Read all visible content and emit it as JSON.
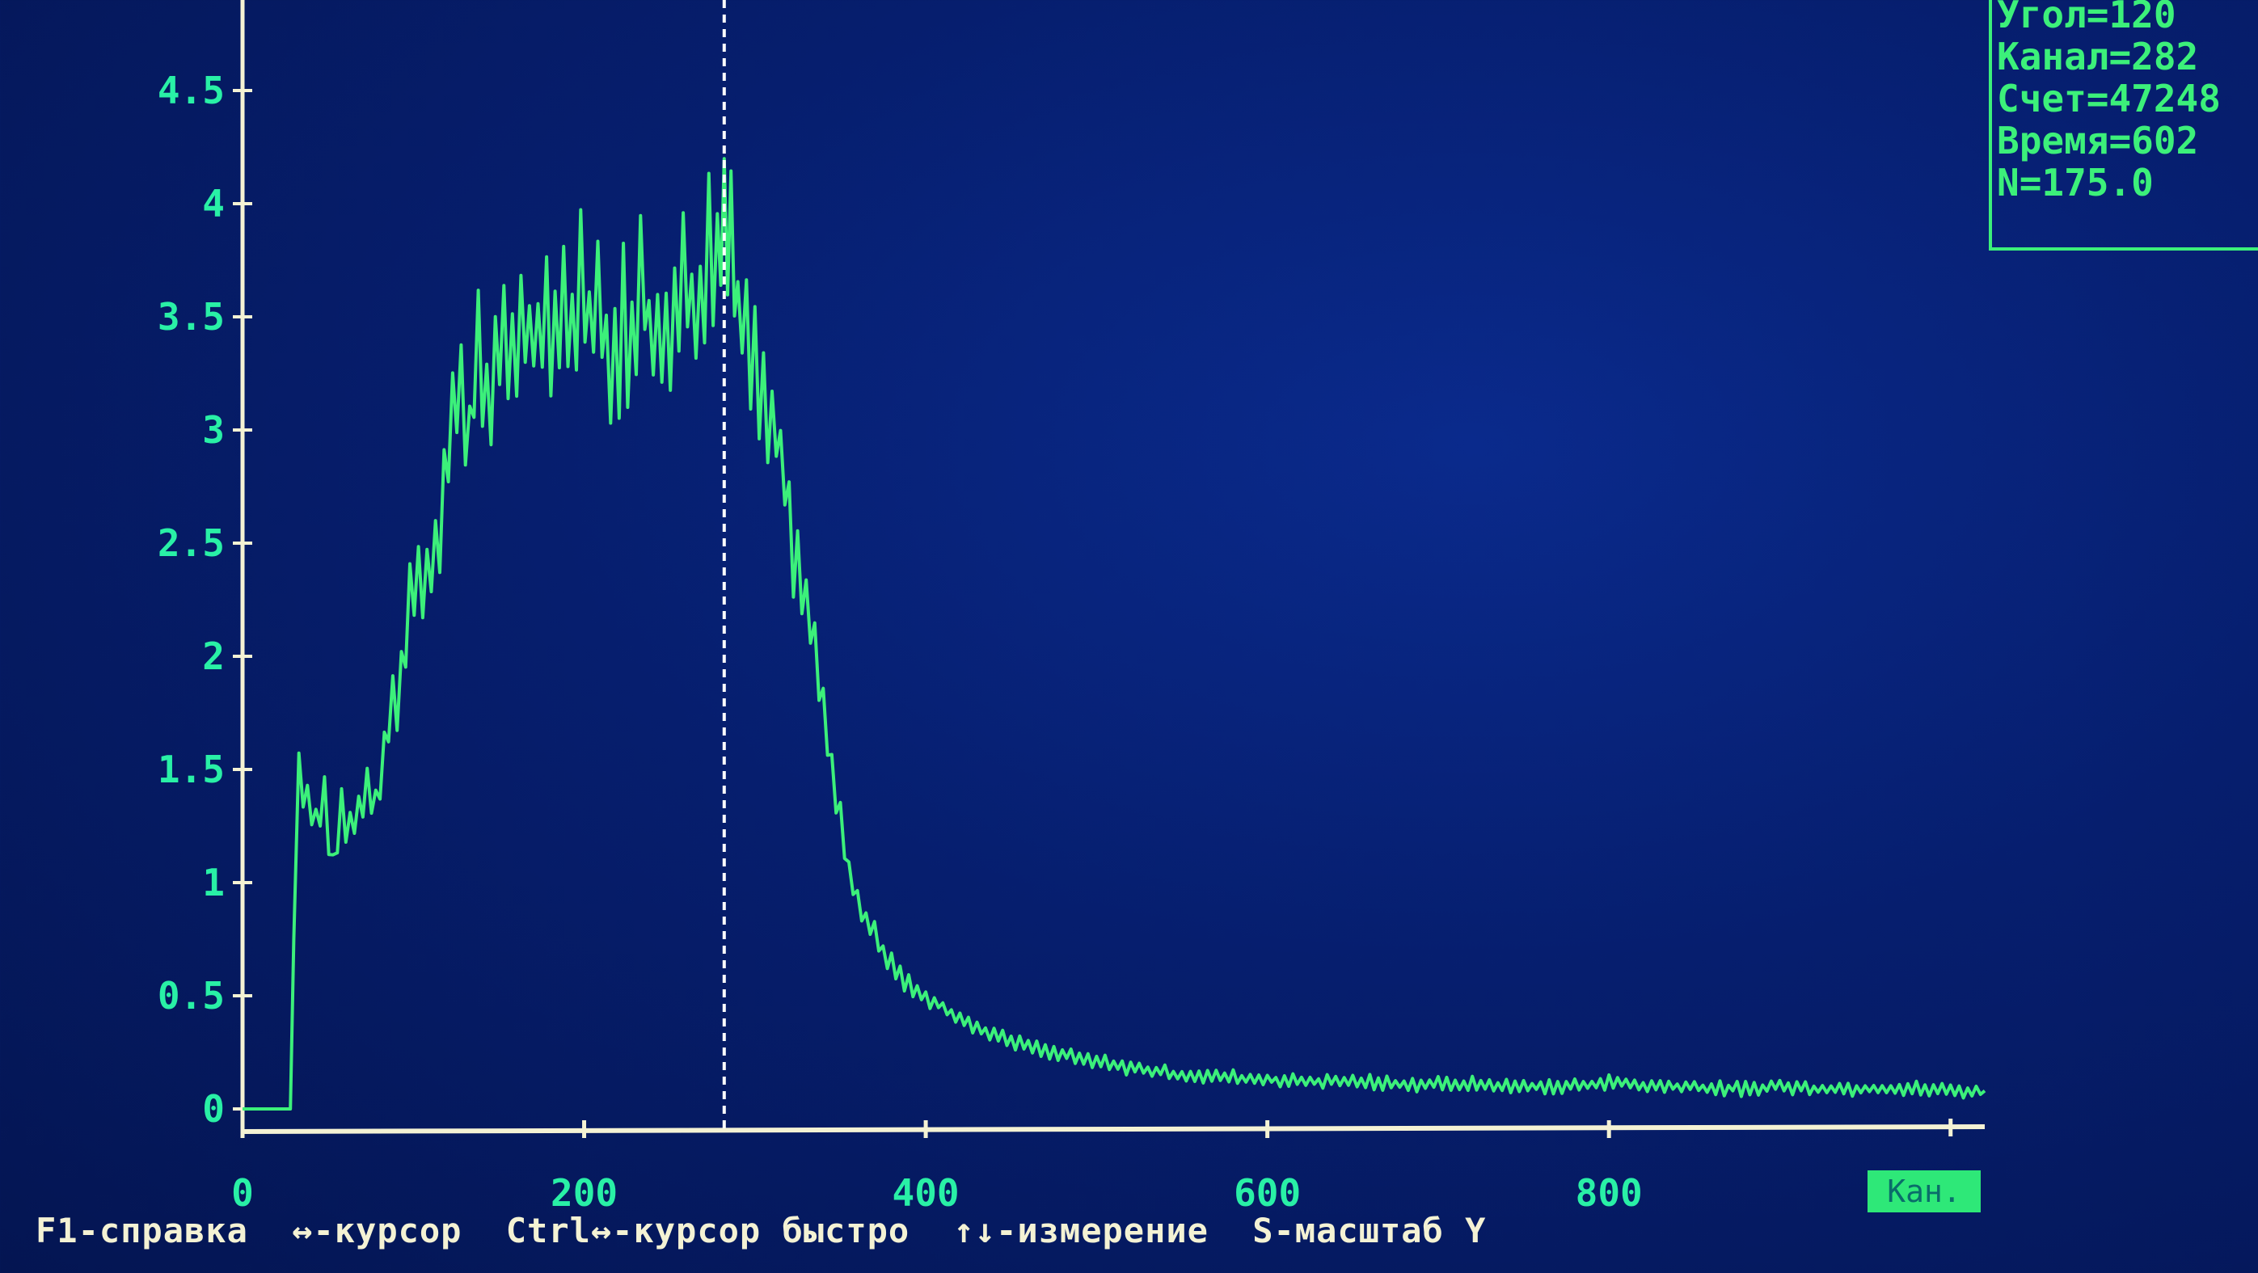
{
  "chart_data": {
    "type": "line",
    "xlabel": "Кан.",
    "xlim": [
      0,
      1020
    ],
    "ylim": [
      0,
      4.9
    ],
    "x_ticks": [
      0,
      200,
      400,
      600,
      800
    ],
    "y_ticks": [
      "0",
      "0.5",
      "1",
      "1.5",
      "2",
      "2.5",
      "3",
      "3.5",
      "4",
      "4.5"
    ],
    "cursor_x": 282,
    "grid": false,
    "legend": "none",
    "series": [
      {
        "color": "#3cf07a",
        "x": [
          0,
          28,
          30,
          33,
          38,
          43,
          48,
          53,
          58,
          63,
          68,
          73,
          78,
          83,
          88,
          93,
          98,
          103,
          108,
          113,
          118,
          123,
          128,
          133,
          138,
          143,
          148,
          153,
          158,
          163,
          168,
          173,
          178,
          183,
          188,
          193,
          198,
          203,
          208,
          213,
          218,
          223,
          228,
          233,
          238,
          243,
          248,
          253,
          258,
          263,
          268,
          273,
          278,
          282,
          286,
          290,
          295,
          300,
          305,
          310,
          315,
          320,
          325,
          330,
          335,
          340,
          345,
          350,
          355,
          360,
          365,
          370,
          375,
          380,
          385,
          390,
          395,
          400,
          410,
          420,
          430,
          440,
          450,
          460,
          470,
          480,
          490,
          500,
          510,
          520,
          530,
          540,
          550,
          560,
          570,
          580,
          590,
          600,
          620,
          640,
          660,
          680,
          700,
          720,
          740,
          760,
          780,
          800,
          820,
          840,
          860,
          880,
          900,
          920,
          940,
          960,
          980,
          1000,
          1020
        ],
        "y": [
          0,
          0,
          0.75,
          1.48,
          1.38,
          1.25,
          1.42,
          1.05,
          1.35,
          1.22,
          1.3,
          1.4,
          1.32,
          1.6,
          1.75,
          1.95,
          2.2,
          2.35,
          2.3,
          2.5,
          2.75,
          3.05,
          3.25,
          2.95,
          3.5,
          3.15,
          3.3,
          3.4,
          3.25,
          3.55,
          3.35,
          3.45,
          3.5,
          3.3,
          3.6,
          3.4,
          3.75,
          3.45,
          3.55,
          3.35,
          3.25,
          3.5,
          3.3,
          3.7,
          3.4,
          3.45,
          3.35,
          3.55,
          3.85,
          3.45,
          3.6,
          3.9,
          3.7,
          4.05,
          3.8,
          3.55,
          3.4,
          3.3,
          3.2,
          3.05,
          2.9,
          2.6,
          2.35,
          2.2,
          2.05,
          1.8,
          1.5,
          1.25,
          1.05,
          0.9,
          0.82,
          0.78,
          0.7,
          0.65,
          0.6,
          0.55,
          0.52,
          0.5,
          0.45,
          0.4,
          0.36,
          0.33,
          0.3,
          0.28,
          0.26,
          0.24,
          0.22,
          0.21,
          0.2,
          0.18,
          0.17,
          0.16,
          0.15,
          0.15,
          0.14,
          0.14,
          0.13,
          0.13,
          0.12,
          0.12,
          0.12,
          0.11,
          0.11,
          0.11,
          0.1,
          0.1,
          0.1,
          0.12,
          0.1,
          0.1,
          0.09,
          0.09,
          0.1,
          0.09,
          0.09,
          0.09,
          0.09,
          0.08,
          0.08
        ]
      }
    ]
  },
  "info_panel": {
    "angle": "Угол=120",
    "channel": "Канал=282",
    "count": "Счет=47248",
    "time": "Время=602",
    "n": "N=175.0"
  },
  "status_bar": {
    "help": "F1-справка",
    "cursor": "↔-курсор",
    "cursor_fast": "Ctrl↔-курсор быстро",
    "measure": "↑↓-измерение",
    "scale": "S-масштаб Y"
  },
  "colors": {
    "trace": "#3cf07a",
    "axis": "#f4f2d4",
    "tick_labels": "#29f0a6",
    "background": "#061e6e"
  }
}
